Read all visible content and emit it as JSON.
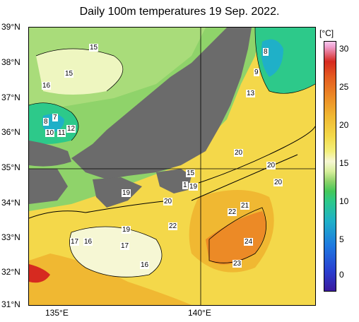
{
  "title": "Daily 100m temperatures 19 Sep. 2022.",
  "lat_ticks": [
    "39°N",
    "38°N",
    "37°N",
    "36°N",
    "35°N",
    "34°N",
    "33°N",
    "32°N",
    "31°N"
  ],
  "lon_ticks": [
    "135°E",
    "140°E"
  ],
  "colorbar": {
    "unit": "[°C]",
    "ticks": [
      "30",
      "25",
      "20",
      "15",
      "10",
      "5",
      "0"
    ],
    "colors": {
      "cold": "#2a3fd0",
      "mid": "#45c85a",
      "warm": "#f3d94a",
      "hot": "#d62a20",
      "land": "#6b6b6b"
    }
  },
  "contour_labels": [
    "15",
    "15",
    "16",
    "8",
    "7",
    "10",
    "11",
    "12",
    "8",
    "9",
    "13",
    "20",
    "20",
    "20",
    "15",
    "1",
    "19",
    "19",
    "20",
    "21",
    "22",
    "22",
    "19",
    "17",
    "16",
    "17",
    "16",
    "24",
    "23"
  ]
}
